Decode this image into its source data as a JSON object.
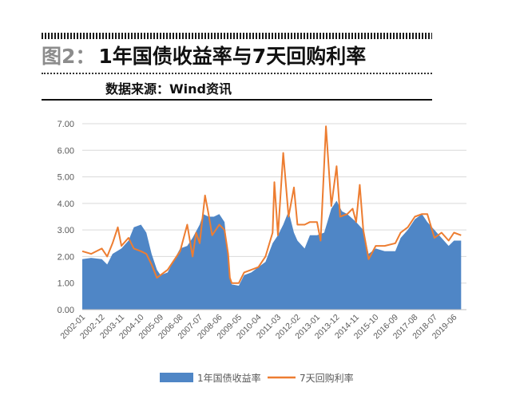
{
  "header": {
    "figure_label": "图2：",
    "title": "1年国债收益率与7天回购利率",
    "source": "数据来源：Wind资讯"
  },
  "chart_data": {
    "type": "area+line",
    "title": "1年国债收益率与7天回购利率",
    "xlabel": "",
    "ylabel": "",
    "ylim": [
      0,
      7
    ],
    "yticks": [
      "7.00",
      "6.00",
      "5.00",
      "4.00",
      "3.00",
      "2.00",
      "1.00",
      "0.00"
    ],
    "xticks": [
      "2002-01",
      "2002-12",
      "2003-11",
      "2004-10",
      "2005-09",
      "2006-08",
      "2007-07",
      "2008-06",
      "2009-05",
      "2010-04",
      "2011-03",
      "2012-02",
      "2013-01",
      "2013-12",
      "2014-11",
      "2015-10",
      "2016-09",
      "2017-08",
      "2018-07",
      "2019-06"
    ],
    "legend_position": "bottom",
    "grid": "horizontal",
    "colors": {
      "area": "#4f86c6",
      "line": "#ed7d31",
      "grid": "#d9d9d9",
      "text": "#595959"
    },
    "series": [
      {
        "name": "1年国债收益率",
        "style": "area",
        "points": [
          [
            "2002-01",
            1.9
          ],
          [
            "2002-06",
            1.95
          ],
          [
            "2002-12",
            1.9
          ],
          [
            "2003-03",
            1.7
          ],
          [
            "2003-06",
            2.1
          ],
          [
            "2003-11",
            2.3
          ],
          [
            "2004-03",
            2.6
          ],
          [
            "2004-06",
            3.1
          ],
          [
            "2004-10",
            3.2
          ],
          [
            "2005-01",
            2.9
          ],
          [
            "2005-04",
            2.1
          ],
          [
            "2005-07",
            1.5
          ],
          [
            "2005-09",
            1.3
          ],
          [
            "2006-01",
            1.4
          ],
          [
            "2006-04",
            1.8
          ],
          [
            "2006-08",
            2.3
          ],
          [
            "2006-12",
            2.4
          ],
          [
            "2007-03",
            2.7
          ],
          [
            "2007-07",
            3.2
          ],
          [
            "2007-09",
            3.6
          ],
          [
            "2007-12",
            3.5
          ],
          [
            "2008-03",
            3.5
          ],
          [
            "2008-06",
            3.6
          ],
          [
            "2008-09",
            3.3
          ],
          [
            "2008-11",
            2.0
          ],
          [
            "2008-12",
            1.2
          ],
          [
            "2009-01",
            0.95
          ],
          [
            "2009-05",
            0.9
          ],
          [
            "2009-08",
            1.3
          ],
          [
            "2009-12",
            1.4
          ],
          [
            "2010-04",
            1.6
          ],
          [
            "2010-08",
            1.8
          ],
          [
            "2010-12",
            2.5
          ],
          [
            "2011-03",
            2.8
          ],
          [
            "2011-06",
            3.2
          ],
          [
            "2011-09",
            3.7
          ],
          [
            "2011-12",
            2.9
          ],
          [
            "2012-02",
            2.6
          ],
          [
            "2012-06",
            2.3
          ],
          [
            "2012-09",
            2.8
          ],
          [
            "2013-01",
            2.8
          ],
          [
            "2013-05",
            2.9
          ],
          [
            "2013-09",
            3.8
          ],
          [
            "2013-12",
            4.1
          ],
          [
            "2014-03",
            3.7
          ],
          [
            "2014-06",
            3.6
          ],
          [
            "2014-11",
            3.3
          ],
          [
            "2015-03",
            3.0
          ],
          [
            "2015-06",
            2.1
          ],
          [
            "2015-10",
            2.3
          ],
          [
            "2016-03",
            2.2
          ],
          [
            "2016-09",
            2.2
          ],
          [
            "2016-12",
            2.7
          ],
          [
            "2017-04",
            3.0
          ],
          [
            "2017-08",
            3.4
          ],
          [
            "2017-12",
            3.6
          ],
          [
            "2018-03",
            3.3
          ],
          [
            "2018-07",
            3.0
          ],
          [
            "2018-11",
            2.7
          ],
          [
            "2019-03",
            2.4
          ],
          [
            "2019-06",
            2.6
          ],
          [
            "2019-10",
            2.6
          ]
        ]
      },
      {
        "name": "7天回购利率",
        "style": "line",
        "points": [
          [
            "2002-01",
            2.2
          ],
          [
            "2002-06",
            2.1
          ],
          [
            "2002-12",
            2.3
          ],
          [
            "2003-03",
            2.0
          ],
          [
            "2003-06",
            2.5
          ],
          [
            "2003-09",
            3.1
          ],
          [
            "2003-11",
            2.4
          ],
          [
            "2004-03",
            2.7
          ],
          [
            "2004-06",
            2.3
          ],
          [
            "2004-10",
            2.2
          ],
          [
            "2005-01",
            2.1
          ],
          [
            "2005-04",
            1.7
          ],
          [
            "2005-07",
            1.2
          ],
          [
            "2005-09",
            1.3
          ],
          [
            "2006-01",
            1.5
          ],
          [
            "2006-04",
            1.8
          ],
          [
            "2006-08",
            2.2
          ],
          [
            "2006-12",
            3.2
          ],
          [
            "2007-03",
            2.0
          ],
          [
            "2007-05",
            2.9
          ],
          [
            "2007-07",
            2.5
          ],
          [
            "2007-10",
            4.3
          ],
          [
            "2007-12",
            3.6
          ],
          [
            "2008-02",
            2.8
          ],
          [
            "2008-06",
            3.2
          ],
          [
            "2008-09",
            3.0
          ],
          [
            "2008-11",
            2.1
          ],
          [
            "2008-12",
            1.2
          ],
          [
            "2009-01",
            1.0
          ],
          [
            "2009-05",
            1.0
          ],
          [
            "2009-08",
            1.4
          ],
          [
            "2009-12",
            1.5
          ],
          [
            "2010-04",
            1.6
          ],
          [
            "2010-08",
            2.0
          ],
          [
            "2010-12",
            2.9
          ],
          [
            "2011-01",
            4.8
          ],
          [
            "2011-03",
            2.8
          ],
          [
            "2011-06",
            5.9
          ],
          [
            "2011-09",
            3.5
          ],
          [
            "2011-12",
            4.6
          ],
          [
            "2012-02",
            3.2
          ],
          [
            "2012-06",
            3.2
          ],
          [
            "2012-09",
            3.3
          ],
          [
            "2013-01",
            3.3
          ],
          [
            "2013-03",
            2.6
          ],
          [
            "2013-06",
            6.9
          ],
          [
            "2013-09",
            3.9
          ],
          [
            "2013-12",
            5.4
          ],
          [
            "2014-02",
            3.5
          ],
          [
            "2014-06",
            3.6
          ],
          [
            "2014-09",
            3.8
          ],
          [
            "2014-11",
            3.3
          ],
          [
            "2015-01",
            4.7
          ],
          [
            "2015-03",
            3.0
          ],
          [
            "2015-06",
            1.9
          ],
          [
            "2015-10",
            2.4
          ],
          [
            "2016-03",
            2.4
          ],
          [
            "2016-09",
            2.5
          ],
          [
            "2016-12",
            2.9
          ],
          [
            "2017-04",
            3.1
          ],
          [
            "2017-08",
            3.5
          ],
          [
            "2017-12",
            3.6
          ],
          [
            "2018-03",
            3.6
          ],
          [
            "2018-07",
            2.7
          ],
          [
            "2018-11",
            2.9
          ],
          [
            "2019-03",
            2.6
          ],
          [
            "2019-06",
            2.9
          ],
          [
            "2019-10",
            2.8
          ]
        ]
      }
    ]
  }
}
